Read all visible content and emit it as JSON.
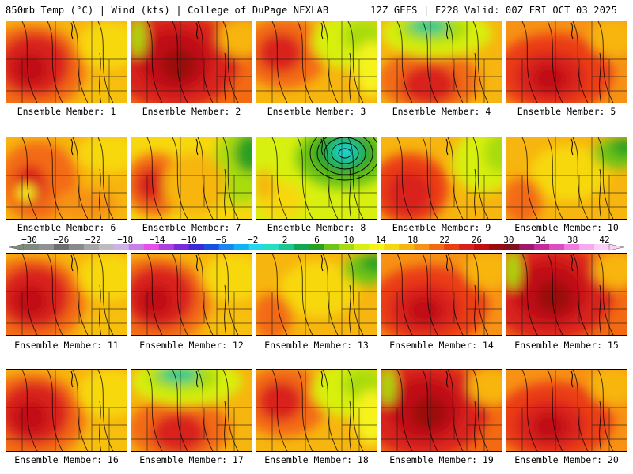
{
  "header": {
    "left": "850mb Temp (°C) | Wind (kts) | College of DuPage NEXLAB",
    "right": "12Z GEFS | F228 Valid: 00Z FRI OCT 03 2025"
  },
  "colorbar": {
    "tick_labels": [
      "−30",
      "−26",
      "−22",
      "−18",
      "−14",
      "−10",
      "−6",
      "−2",
      "2",
      "6",
      "10",
      "14",
      "18",
      "22",
      "26",
      "30",
      "34",
      "38",
      "42"
    ],
    "colors": [
      "#7d8c7f",
      "#919191",
      "#6e6e6e",
      "#8a8a8a",
      "#a6a6a6",
      "#bcbcbc",
      "#cfb2e8",
      "#c87de8",
      "#e84fe8",
      "#b03fe0",
      "#7a2ad8",
      "#3c2ad8",
      "#1a50e0",
      "#1a86f0",
      "#10b4f6",
      "#22d8ea",
      "#22e0c0",
      "#18c890",
      "#10a850",
      "#2aa020",
      "#6ec418",
      "#a8dc10",
      "#d8f010",
      "#f6f31a",
      "#f7d80e",
      "#f7b50f",
      "#f79215",
      "#f36a13",
      "#eb3e12",
      "#d9201a",
      "#c00e12",
      "#9a0a0e",
      "#80101c",
      "#a0186a",
      "#c62a9a",
      "#de4cc2",
      "#f07ae0",
      "#f8aaf0",
      "#fad0f6"
    ]
  },
  "members": [
    {
      "label": "Ensemble Member: 1",
      "style": "hot-west"
    },
    {
      "label": "Ensemble Member: 2",
      "style": "very-hot"
    },
    {
      "label": "Ensemble Member: 3",
      "style": "hot-nw-green-ne"
    },
    {
      "label": "Ensemble Member: 4",
      "style": "green-north"
    },
    {
      "label": "Ensemble Member: 5",
      "style": "hot-wide"
    },
    {
      "label": "Ensemble Member: 6",
      "style": "mixed"
    },
    {
      "label": "Ensemble Member: 7",
      "style": "mild"
    },
    {
      "label": "Ensemble Member: 8",
      "style": "cold-trough"
    },
    {
      "label": "Ensemble Member: 9",
      "style": "hot-sw"
    },
    {
      "label": "Ensemble Member: 10",
      "style": "warm-yellow"
    },
    {
      "label": "Ensemble Member: 11",
      "style": "hot-west"
    },
    {
      "label": "Ensemble Member: 12",
      "style": "hot-west"
    },
    {
      "label": "Ensemble Member: 13",
      "style": "warm-yellow"
    },
    {
      "label": "Ensemble Member: 14",
      "style": "hot-wide"
    },
    {
      "label": "Ensemble Member: 15",
      "style": "very-hot"
    },
    {
      "label": "Ensemble Member: 16",
      "style": "hot-west"
    },
    {
      "label": "Ensemble Member: 17",
      "style": "green-north"
    },
    {
      "label": "Ensemble Member: 18",
      "style": "hot-nw-green-ne"
    },
    {
      "label": "Ensemble Member: 19",
      "style": "very-hot"
    },
    {
      "label": "Ensemble Member: 20",
      "style": "hot-wide"
    }
  ]
}
